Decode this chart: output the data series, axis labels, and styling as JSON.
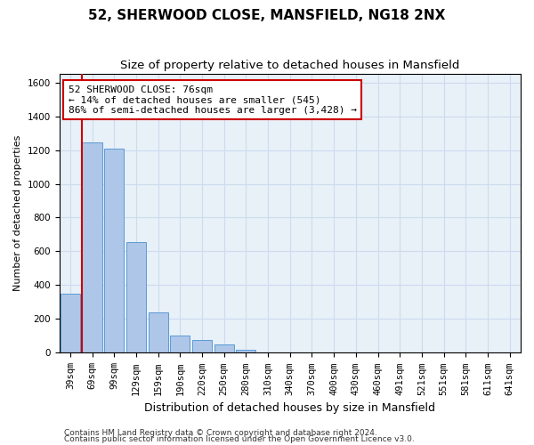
{
  "title1": "52, SHERWOOD CLOSE, MANSFIELD, NG18 2NX",
  "title2": "Size of property relative to detached houses in Mansfield",
  "xlabel": "Distribution of detached houses by size in Mansfield",
  "ylabel": "Number of detached properties",
  "footer1": "Contains HM Land Registry data © Crown copyright and database right 2024.",
  "footer2": "Contains public sector information licensed under the Open Government Licence v3.0.",
  "bins": [
    "39sqm",
    "69sqm",
    "99sqm",
    "129sqm",
    "159sqm",
    "190sqm",
    "220sqm",
    "250sqm",
    "280sqm",
    "310sqm",
    "340sqm",
    "370sqm",
    "400sqm",
    "430sqm",
    "460sqm",
    "491sqm",
    "521sqm",
    "551sqm",
    "581sqm",
    "611sqm",
    "641sqm"
  ],
  "values": [
    350,
    1245,
    1210,
    655,
    240,
    105,
    75,
    50,
    20,
    2,
    0,
    0,
    0,
    0,
    0,
    0,
    0,
    0,
    0,
    0,
    0
  ],
  "bar_color": "#aec6e8",
  "bar_edge_color": "#5b9bd5",
  "grid_color": "#ccdcee",
  "background_color": "#e8f0f8",
  "vline_color": "#cc0000",
  "annotation_line1": "52 SHERWOOD CLOSE: 76sqm",
  "annotation_line2": "← 14% of detached houses are smaller (545)",
  "annotation_line3": "86% of semi-detached houses are larger (3,428) →",
  "annotation_box_color": "#ffffff",
  "annotation_box_edge_color": "#cc0000",
  "ylim": [
    0,
    1650
  ],
  "yticks": [
    0,
    200,
    400,
    600,
    800,
    1000,
    1200,
    1400,
    1600
  ],
  "title1_fontsize": 11,
  "title2_fontsize": 9.5,
  "xlabel_fontsize": 9,
  "ylabel_fontsize": 8,
  "tick_fontsize": 7.5,
  "annotation_fontsize": 8,
  "footer_fontsize": 6.5
}
